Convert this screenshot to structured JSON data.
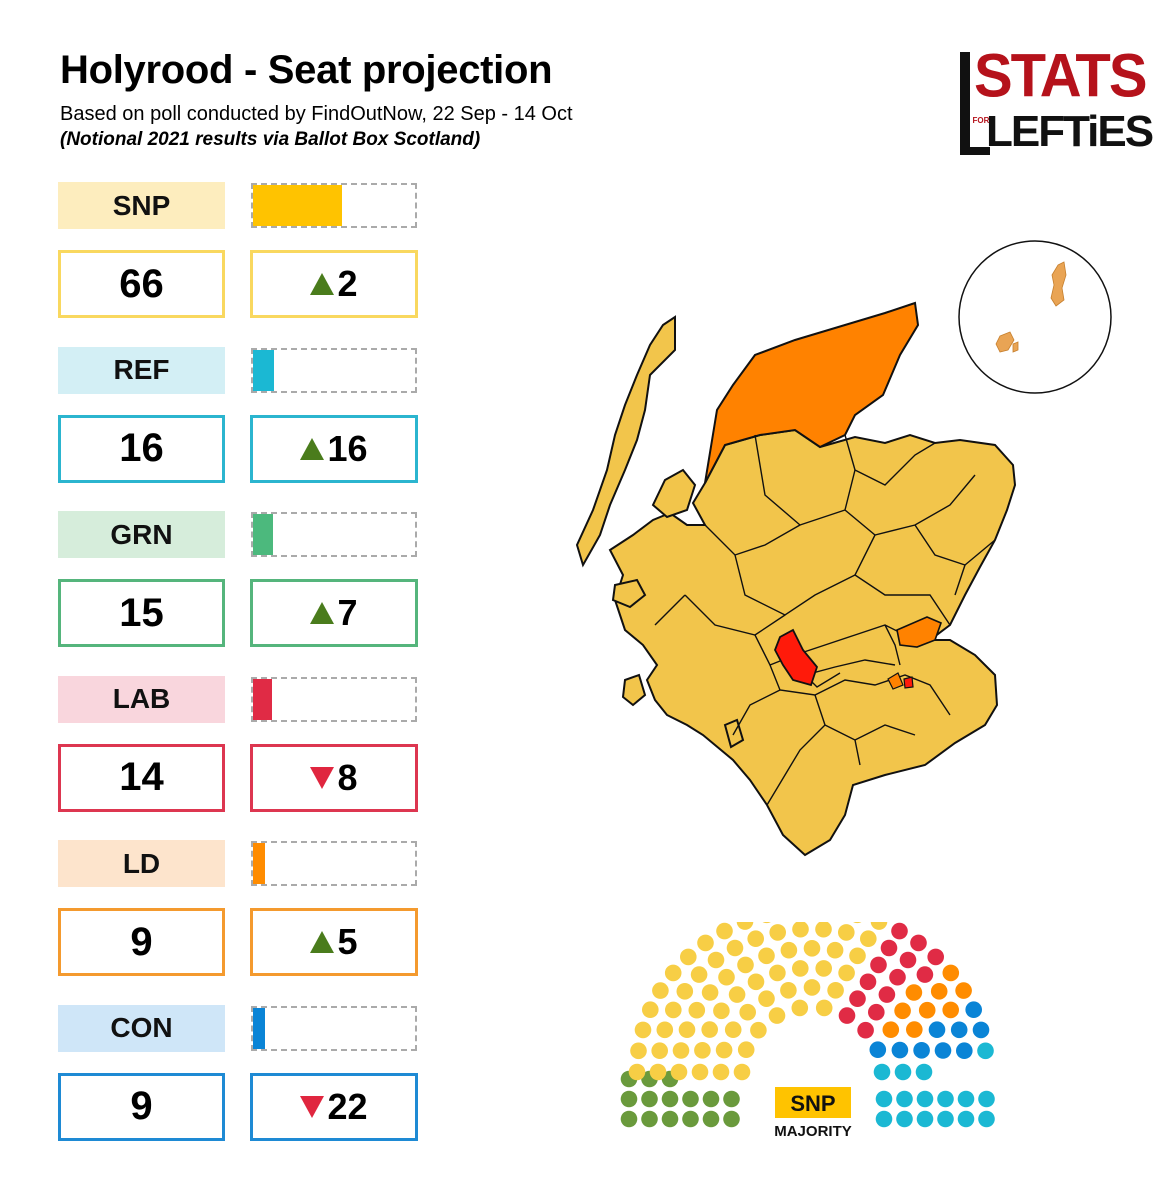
{
  "header": {
    "title": "Holyrood - Seat projection",
    "subtitle": "Based on poll conducted by FindOutNow, 22 Sep - 14 Oct",
    "source_note": "(Notional 2021 results via Ballot Box Scotland)"
  },
  "logo": {
    "line1": "STATS",
    "line2_small": "FOR",
    "line2": "LEFTiES"
  },
  "colors": {
    "snp": "#FFC300",
    "ref": "#1BB8D3",
    "grn": "#4CB97D",
    "lab": "#E02B45",
    "ld": "#FF8C00",
    "con": "#0A84D6",
    "green_block": "#6A9A3C",
    "map_snp": "#F2C54B",
    "map_ld": "#FF8200",
    "map_lab": "#FF1A0A"
  },
  "chart_data": {
    "type": "bar",
    "categories": [
      "SNP",
      "REF",
      "GRN",
      "LAB",
      "LD",
      "CON"
    ],
    "values": [
      66,
      16,
      15,
      14,
      9,
      9
    ],
    "changes": [
      2,
      16,
      7,
      -8,
      5,
      -22
    ],
    "change_labels": [
      "2",
      "16",
      "7",
      "8",
      "5",
      "22"
    ],
    "total_seats": 129,
    "parties": [
      {
        "abbr": "SNP",
        "seats": 66,
        "change": 2,
        "change_label": "2",
        "color": "#FFC300",
        "label_bg": "#FDEDBE",
        "box_border": "#F9D85F"
      },
      {
        "abbr": "REF",
        "seats": 16,
        "change": 16,
        "change_label": "16",
        "color": "#1BB8D3",
        "label_bg": "#D3EFF5",
        "box_border": "#2BB5CF"
      },
      {
        "abbr": "GRN",
        "seats": 15,
        "change": 7,
        "change_label": "7",
        "color": "#4CB97D",
        "label_bg": "#D6EDDB",
        "box_border": "#55B57C"
      },
      {
        "abbr": "LAB",
        "seats": 14,
        "change": -8,
        "change_label": "8",
        "color": "#E02B45",
        "label_bg": "#F9D6DD",
        "box_border": "#DD3650"
      },
      {
        "abbr": "LD",
        "seats": 9,
        "change": 5,
        "change_label": "5",
        "color": "#FF8C00",
        "label_bg": "#FDE4CC",
        "box_border": "#F49A2E"
      },
      {
        "abbr": "CON",
        "seats": 9,
        "change": -22,
        "change_label": "22",
        "color": "#0A84D6",
        "label_bg": "#CFE6F8",
        "box_border": "#1E8AD4"
      }
    ],
    "xlabel": "",
    "ylabel": ""
  },
  "parliament": {
    "badge": "SNP",
    "caption": "MAJORITY"
  }
}
